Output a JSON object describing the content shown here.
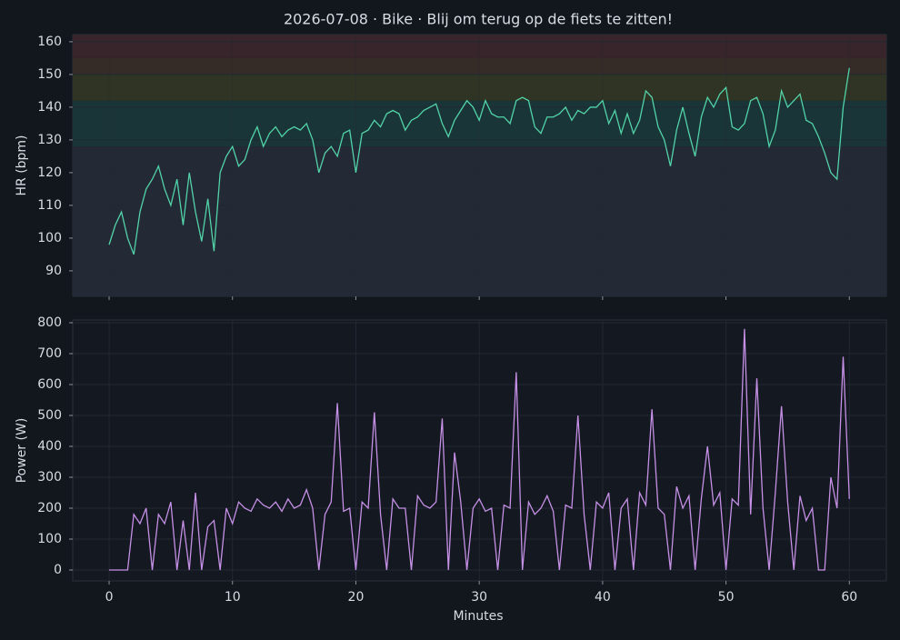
{
  "chart_data": [
    {
      "type": "line",
      "title": "2026-07-08 · Bike · Blij om terug op de fiets te zitten!",
      "ylabel": "HR (bpm)",
      "x": [
        0,
        0.5,
        1,
        1.5,
        2,
        2.5,
        3,
        3.5,
        4,
        4.5,
        5,
        5.5,
        6,
        6.5,
        7,
        7.5,
        8,
        8.5,
        9,
        9.5,
        10,
        10.5,
        11,
        11.5,
        12,
        12.5,
        13,
        13.5,
        14,
        14.5,
        15,
        15.5,
        16,
        16.5,
        17,
        17.5,
        18,
        18.5,
        19,
        19.5,
        20,
        20.5,
        21,
        21.5,
        22,
        22.5,
        23,
        23.5,
        24,
        24.5,
        25,
        25.5,
        26,
        26.5,
        27,
        27.5,
        28,
        28.5,
        29,
        29.5,
        30,
        30.5,
        31,
        31.5,
        32,
        32.5,
        33,
        33.5,
        34,
        34.5,
        35,
        35.5,
        36,
        36.5,
        37,
        37.5,
        38,
        38.5,
        39,
        39.5,
        40,
        40.5,
        41,
        41.5,
        42,
        42.5,
        43,
        43.5,
        44,
        44.5,
        45,
        45.5,
        46,
        46.5,
        47,
        47.5,
        48,
        48.5,
        49,
        49.5,
        50,
        50.5,
        51,
        51.5,
        52,
        52.5,
        53,
        53.5,
        54,
        54.5,
        55,
        55.5,
        56,
        56.5,
        57,
        57.5,
        58,
        58.5,
        59,
        59.5,
        60
      ],
      "series": [
        {
          "color": "#52d3a8",
          "values": [
            98,
            104,
            108,
            100,
            95,
            108,
            115,
            118,
            122,
            115,
            110,
            118,
            104,
            120,
            108,
            99,
            112,
            96,
            120,
            125,
            128,
            122,
            124,
            130,
            134,
            128,
            132,
            134,
            131,
            133,
            134,
            133,
            135,
            130,
            120,
            126,
            128,
            125,
            132,
            133,
            120,
            132,
            133,
            136,
            134,
            138,
            139,
            138,
            133,
            136,
            137,
            139,
            140,
            141,
            135,
            131,
            136,
            139,
            142,
            140,
            136,
            142,
            138,
            137,
            137,
            135,
            142,
            143,
            142,
            134,
            132,
            137,
            137,
            138,
            140,
            136,
            139,
            138,
            140,
            140,
            142,
            135,
            139,
            132,
            138,
            132,
            136,
            145,
            143,
            134,
            130,
            122,
            133,
            140,
            132,
            125,
            137,
            143,
            140,
            144,
            146,
            134,
            133,
            135,
            142,
            143,
            138,
            128,
            133,
            145,
            140,
            142,
            144,
            136,
            135,
            131,
            126,
            120,
            118,
            140,
            152
          ]
        }
      ],
      "xlim": [
        -2.95,
        63
      ],
      "xticks": [
        0,
        10,
        20,
        30,
        40,
        50,
        60
      ],
      "ylim": [
        82.2,
        162.2
      ],
      "yticks": [
        90,
        100,
        110,
        120,
        130,
        140,
        150,
        160
      ],
      "grid": true,
      "zones": [
        {
          "from": 82.2,
          "to": 128,
          "color": "#232a36"
        },
        {
          "from": 128,
          "to": 142,
          "color": "#1a3538"
        },
        {
          "from": 142,
          "to": 150,
          "color": "#2f3424"
        },
        {
          "from": 150,
          "to": 155,
          "color": "#362c27"
        },
        {
          "from": 155,
          "to": 162.2,
          "color": "#38242b"
        }
      ]
    },
    {
      "type": "line",
      "ylabel": "Power (W)",
      "xlabel": "Minutes",
      "x": [
        0,
        0.5,
        1,
        1.5,
        2,
        2.5,
        3,
        3.5,
        4,
        4.5,
        5,
        5.5,
        6,
        6.5,
        7,
        7.5,
        8,
        8.5,
        9,
        9.5,
        10,
        10.5,
        11,
        11.5,
        12,
        12.5,
        13,
        13.5,
        14,
        14.5,
        15,
        15.5,
        16,
        16.5,
        17,
        17.5,
        18,
        18.5,
        19,
        19.5,
        20,
        20.5,
        21,
        21.5,
        22,
        22.5,
        23,
        23.5,
        24,
        24.5,
        25,
        25.5,
        26,
        26.5,
        27,
        27.5,
        28,
        28.5,
        29,
        29.5,
        30,
        30.5,
        31,
        31.5,
        32,
        32.5,
        33,
        33.5,
        34,
        34.5,
        35,
        35.5,
        36,
        36.5,
        37,
        37.5,
        38,
        38.5,
        39,
        39.5,
        40,
        40.5,
        41,
        41.5,
        42,
        42.5,
        43,
        43.5,
        44,
        44.5,
        45,
        45.5,
        46,
        46.5,
        47,
        47.5,
        48,
        48.5,
        49,
        49.5,
        50,
        50.5,
        51,
        51.5,
        52,
        52.5,
        53,
        53.5,
        54,
        54.5,
        55,
        55.5,
        56,
        56.5,
        57,
        57.5,
        58,
        58.5,
        59,
        59.5,
        60
      ],
      "series": [
        {
          "color": "#c590e6",
          "values": [
            0,
            0,
            0,
            0,
            180,
            150,
            200,
            0,
            180,
            150,
            220,
            0,
            160,
            0,
            250,
            0,
            140,
            160,
            0,
            200,
            150,
            220,
            200,
            190,
            230,
            210,
            200,
            220,
            190,
            230,
            200,
            210,
            260,
            200,
            0,
            180,
            220,
            540,
            190,
            200,
            0,
            220,
            200,
            510,
            180,
            0,
            230,
            200,
            200,
            0,
            240,
            210,
            200,
            220,
            490,
            0,
            380,
            220,
            0,
            200,
            230,
            190,
            200,
            0,
            210,
            200,
            640,
            0,
            220,
            180,
            200,
            240,
            190,
            0,
            210,
            200,
            500,
            180,
            0,
            220,
            200,
            250,
            0,
            200,
            230,
            0,
            250,
            210,
            520,
            200,
            180,
            0,
            270,
            200,
            240,
            0,
            230,
            400,
            210,
            250,
            0,
            230,
            210,
            780,
            180,
            620,
            200,
            0,
            250,
            530,
            220,
            0,
            240,
            160,
            200,
            0,
            0,
            300,
            200,
            690,
            230
          ]
        }
      ],
      "xlim": [
        -2.95,
        63
      ],
      "xticks": [
        0,
        10,
        20,
        30,
        40,
        50,
        60
      ],
      "ylim": [
        -35.3,
        808.8
      ],
      "yticks": [
        0,
        100,
        200,
        300,
        400,
        500,
        600,
        700,
        800
      ],
      "grid": true
    }
  ]
}
